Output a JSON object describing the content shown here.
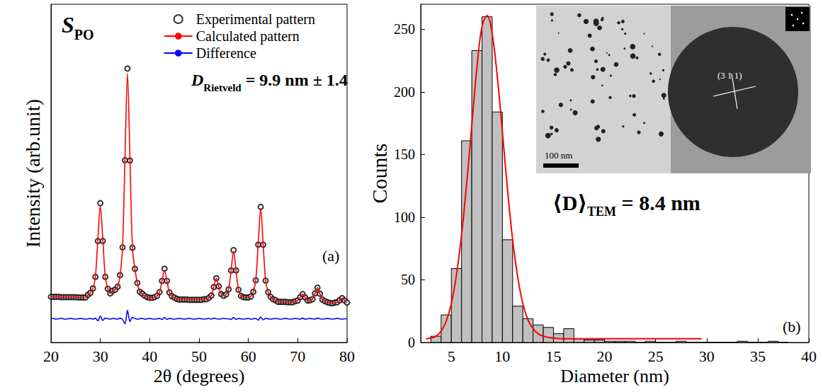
{
  "chart_data": [
    {
      "type": "line",
      "panel_label": "(a)",
      "sample_label": {
        "main": "S",
        "sub": "PO"
      },
      "annotation": {
        "symbol": "D",
        "sub": "Rietveld",
        "text": " = 9.9 nm ± 1.4"
      },
      "x_label": "2θ (degrees)",
      "y_label": "Intensity (arb.unit)",
      "xlim": [
        20,
        80
      ],
      "xticks": [
        20,
        30,
        40,
        50,
        60,
        70,
        80
      ],
      "ylim": [
        0,
        100
      ],
      "tick_labels": "x",
      "grid": false,
      "legend": "upper right",
      "x": [
        20,
        20.5,
        21,
        21.5,
        22,
        22.5,
        23,
        23.5,
        24,
        24.5,
        25,
        25.5,
        26,
        26.5,
        27,
        27.5,
        28,
        28.5,
        29,
        29.5,
        30,
        30.5,
        31,
        31.5,
        32,
        32.5,
        33,
        33.5,
        34,
        34.5,
        35,
        35.5,
        36,
        36.5,
        37,
        37.5,
        38,
        38.5,
        39,
        39.5,
        40,
        40.5,
        41,
        41.5,
        42,
        42.5,
        43,
        43.5,
        44,
        44.5,
        45,
        45.5,
        46,
        46.5,
        47,
        47.5,
        48,
        48.5,
        49,
        49.5,
        50,
        50.5,
        51,
        51.5,
        52,
        52.5,
        53,
        53.5,
        54,
        54.5,
        55,
        55.5,
        56,
        56.5,
        57,
        57.5,
        58,
        58.5,
        59,
        59.5,
        60,
        60.5,
        61,
        61.5,
        62,
        62.5,
        63,
        63.5,
        64,
        64.5,
        65,
        65.5,
        66,
        66.5,
        67,
        67.5,
        68,
        68.5,
        69,
        69.5,
        70,
        70.5,
        71,
        71.5,
        72,
        72.5,
        73,
        73.5,
        74,
        74.5,
        75,
        75.5,
        76,
        76.5,
        77,
        77.5,
        78,
        78.5,
        79,
        79.5,
        80
      ],
      "series": [
        {
          "name": "Experimental pattern",
          "type": "scatter",
          "marker": "open circle",
          "color": "#000000",
          "values": [
            13.5,
            13.5,
            13.5,
            13.5,
            13.4,
            13.4,
            13.4,
            13.4,
            13.4,
            13.4,
            13.4,
            13.3,
            13.3,
            13.3,
            13.3,
            14.1,
            14.7,
            16.0,
            19.4,
            30.0,
            41.2,
            30.0,
            19.4,
            15.9,
            14.5,
            15.3,
            15.6,
            16.5,
            19.9,
            28.1,
            53.9,
            81.0,
            53.8,
            28.0,
            21.8,
            17.6,
            15.0,
            14.4,
            13.8,
            13.4,
            13.2,
            13.2,
            13.4,
            13.8,
            14.9,
            18.2,
            21.8,
            18.2,
            14.8,
            13.7,
            13.3,
            12.9,
            12.7,
            12.7,
            12.7,
            12.7,
            12.6,
            12.6,
            12.6,
            12.6,
            12.6,
            12.6,
            12.8,
            12.8,
            13.2,
            13.9,
            16.4,
            19.0,
            16.6,
            14.3,
            13.8,
            14.2,
            15.7,
            21.3,
            27.3,
            21.3,
            15.6,
            13.8,
            13.4,
            13.3,
            13.3,
            13.6,
            15.0,
            18.4,
            28.9,
            40.1,
            28.9,
            18.3,
            14.9,
            13.5,
            12.8,
            12.5,
            12.0,
            12.0,
            12.0,
            12.0,
            11.9,
            11.9,
            11.9,
            12.2,
            12.4,
            13.4,
            14.3,
            13.3,
            12.4,
            12.5,
            12.8,
            14.5,
            16.2,
            14.4,
            12.7,
            12.2,
            11.9,
            11.7,
            11.6,
            11.8,
            11.9,
            12.5,
            13.1,
            12.4,
            11.8
          ]
        },
        {
          "name": "Calculated pattern",
          "type": "line",
          "color": "#ff0000",
          "values": [
            13.5,
            13.5,
            13.5,
            13.5,
            13.4,
            13.4,
            13.4,
            13.4,
            13.4,
            13.4,
            13.4,
            13.3,
            13.3,
            13.3,
            13.3,
            14.1,
            14.7,
            16.0,
            19.4,
            30.6,
            40.4,
            30.5,
            19.4,
            15.9,
            14.5,
            15.3,
            15.6,
            16.5,
            19.9,
            28.1,
            55.0,
            79.6,
            54.6,
            28.0,
            21.8,
            17.6,
            15.0,
            14.4,
            13.8,
            13.4,
            13.2,
            13.2,
            13.4,
            13.8,
            14.9,
            18.2,
            21.4,
            18.2,
            14.8,
            13.7,
            13.3,
            12.9,
            12.7,
            12.7,
            12.7,
            12.7,
            12.6,
            12.6,
            12.6,
            12.6,
            12.6,
            12.6,
            12.8,
            12.8,
            13.2,
            13.9,
            16.4,
            19.0,
            16.6,
            14.3,
            13.8,
            14.2,
            15.7,
            21.3,
            26.9,
            21.3,
            15.6,
            13.8,
            13.4,
            13.3,
            13.3,
            13.6,
            15.0,
            18.4,
            29.3,
            39.6,
            28.9,
            18.3,
            14.9,
            13.5,
            12.8,
            12.5,
            12.0,
            12.0,
            12.0,
            12.0,
            11.9,
            11.9,
            11.9,
            12.2,
            12.4,
            13.4,
            14.3,
            13.3,
            12.4,
            12.5,
            12.8,
            14.5,
            16.2,
            14.4,
            12.7,
            12.2,
            11.9,
            11.7,
            11.6,
            11.8,
            11.9,
            12.5,
            13.1,
            12.4,
            11.8
          ]
        },
        {
          "name": "Difference",
          "type": "line",
          "color": "#0000ff",
          "values": [
            7.0,
            7.1,
            6.9,
            7.0,
            7.1,
            7.0,
            6.9,
            7.0,
            7.1,
            7.0,
            6.9,
            7.0,
            7.1,
            7.0,
            6.9,
            7.0,
            7.1,
            6.9,
            7.2,
            6.4,
            7.8,
            6.5,
            7.2,
            7.0,
            6.9,
            7.1,
            7.0,
            6.9,
            7.2,
            6.8,
            5.5,
            9.5,
            6.2,
            7.4,
            7.1,
            6.9,
            7.0,
            7.1,
            6.9,
            7.0,
            7.1,
            7.0,
            6.9,
            7.0,
            7.1,
            6.8,
            7.4,
            6.8,
            7.1,
            7.0,
            6.9,
            7.0,
            7.1,
            7.0,
            6.9,
            7.0,
            7.1,
            7.0,
            6.9,
            7.0,
            7.1,
            7.0,
            6.9,
            7.0,
            7.1,
            6.9,
            7.2,
            7.0,
            6.9,
            7.0,
            7.1,
            7.0,
            7.0,
            6.8,
            7.4,
            6.8,
            7.1,
            7.0,
            6.9,
            7.0,
            7.1,
            6.9,
            7.0,
            7.1,
            6.6,
            7.5,
            6.7,
            7.1,
            7.0,
            6.9,
            7.0,
            7.1,
            7.0,
            6.9,
            7.0,
            7.1,
            7.0,
            6.9,
            7.0,
            7.1,
            7.0,
            6.9,
            7.2,
            6.9,
            7.0,
            7.1,
            7.0,
            6.9,
            7.2,
            7.0,
            6.9,
            7.0,
            7.1,
            7.0,
            6.9,
            7.0,
            7.1,
            7.0,
            6.9,
            7.0,
            7.0
          ]
        }
      ]
    },
    {
      "type": "histogram",
      "panel_label": "(b)",
      "annotation": {
        "symbol": "⟨D⟩",
        "sub": "TEM",
        "text": " = 8.4 nm"
      },
      "x_label": "Diameter (nm)",
      "y_label": "Counts",
      "xlim": [
        2,
        40
      ],
      "xticks": [
        5,
        10,
        15,
        20,
        25,
        30,
        35,
        40
      ],
      "ylim": [
        0,
        270
      ],
      "yticks": [
        0,
        50,
        100,
        150,
        200,
        250
      ],
      "grid": false,
      "color": "#c0c0c0",
      "bins": [
        3,
        4,
        5,
        6,
        7,
        8,
        9,
        10,
        11,
        12,
        13,
        14,
        15,
        16,
        17,
        18,
        19,
        20,
        21,
        22,
        23,
        24,
        25,
        26,
        27,
        28,
        29,
        30,
        31,
        32,
        33,
        34,
        35,
        36,
        37,
        38
      ],
      "counts": [
        5,
        22,
        59,
        161,
        233,
        260,
        184,
        82,
        29,
        19,
        14,
        12,
        7,
        11,
        3,
        2,
        2,
        1,
        1,
        1,
        0,
        1,
        0,
        0,
        1,
        0,
        0,
        0,
        0,
        0,
        1,
        0,
        0,
        1,
        0
      ],
      "fit": {
        "color": "#ff0000",
        "x": [
          2.5,
          3,
          3.5,
          4,
          4.5,
          5,
          5.5,
          6,
          6.5,
          7,
          7.5,
          8,
          8.5,
          9,
          9.5,
          10,
          10.5,
          11,
          11.5,
          12,
          12.5,
          13,
          13.5,
          14,
          15,
          16,
          18,
          20,
          25,
          29.5
        ],
        "values": [
          3,
          3.5,
          5,
          9,
          17,
          31,
          54,
          86,
          127,
          173,
          219,
          252,
          261,
          246,
          212,
          168,
          122,
          82,
          52,
          31,
          18,
          11,
          7,
          5,
          3.5,
          3,
          3,
          3,
          3,
          3
        ]
      },
      "inset": {
        "scale_bar": "100 nm",
        "lattice_plane": "(3 1 1)"
      }
    }
  ]
}
